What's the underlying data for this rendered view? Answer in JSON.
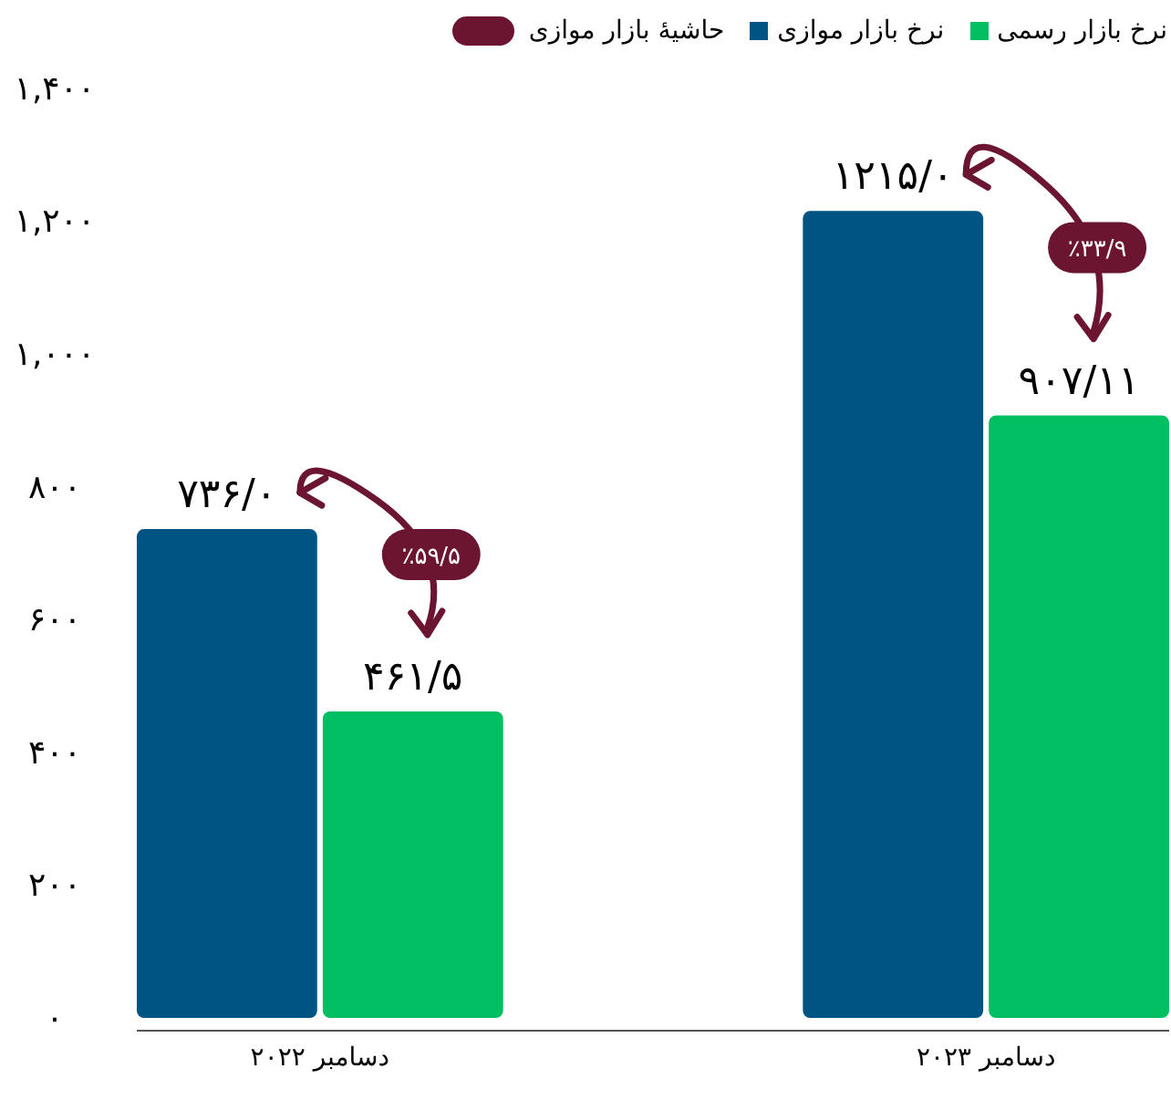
{
  "chart_data": {
    "type": "bar",
    "categories": [
      "دسامبر ۲۰۲۲",
      "دسامبر ۲۰۲۳"
    ],
    "series": [
      {
        "name": "نرخ بازار موازی",
        "color": "#005483",
        "values": [
          736.0,
          1215.0
        ],
        "value_labels": [
          "۷۳۶/۰",
          "۱۲۱۵/۰"
        ]
      },
      {
        "name": "نرخ بازار رسمی",
        "color": "#00bf63",
        "values": [
          461.5,
          907.11
        ],
        "value_labels": [
          "۴۶۱/۵",
          "۹۰۷/۱۱"
        ]
      }
    ],
    "ylim": [
      0,
      1530
    ],
    "yticks": [
      {
        "value": 0,
        "label": "۰"
      },
      {
        "value": 200,
        "label": "۲۰۰"
      },
      {
        "value": 400,
        "label": "۴۰۰"
      },
      {
        "value": 600,
        "label": "۶۰۰"
      },
      {
        "value": 800,
        "label": "۸۰۰"
      },
      {
        "value": 1000,
        "label": "۱,۰۰۰"
      },
      {
        "value": 1200,
        "label": "۱,۲۰۰"
      },
      {
        "value": 1400,
        "label": "۱,۴۰۰"
      }
    ],
    "annotations": [
      "حاشیهٔ بازار موازی",
      "٪۵۹/۵",
      "٪۳۳/۹"
    ],
    "legend": "top",
    "grid": false
  }
}
